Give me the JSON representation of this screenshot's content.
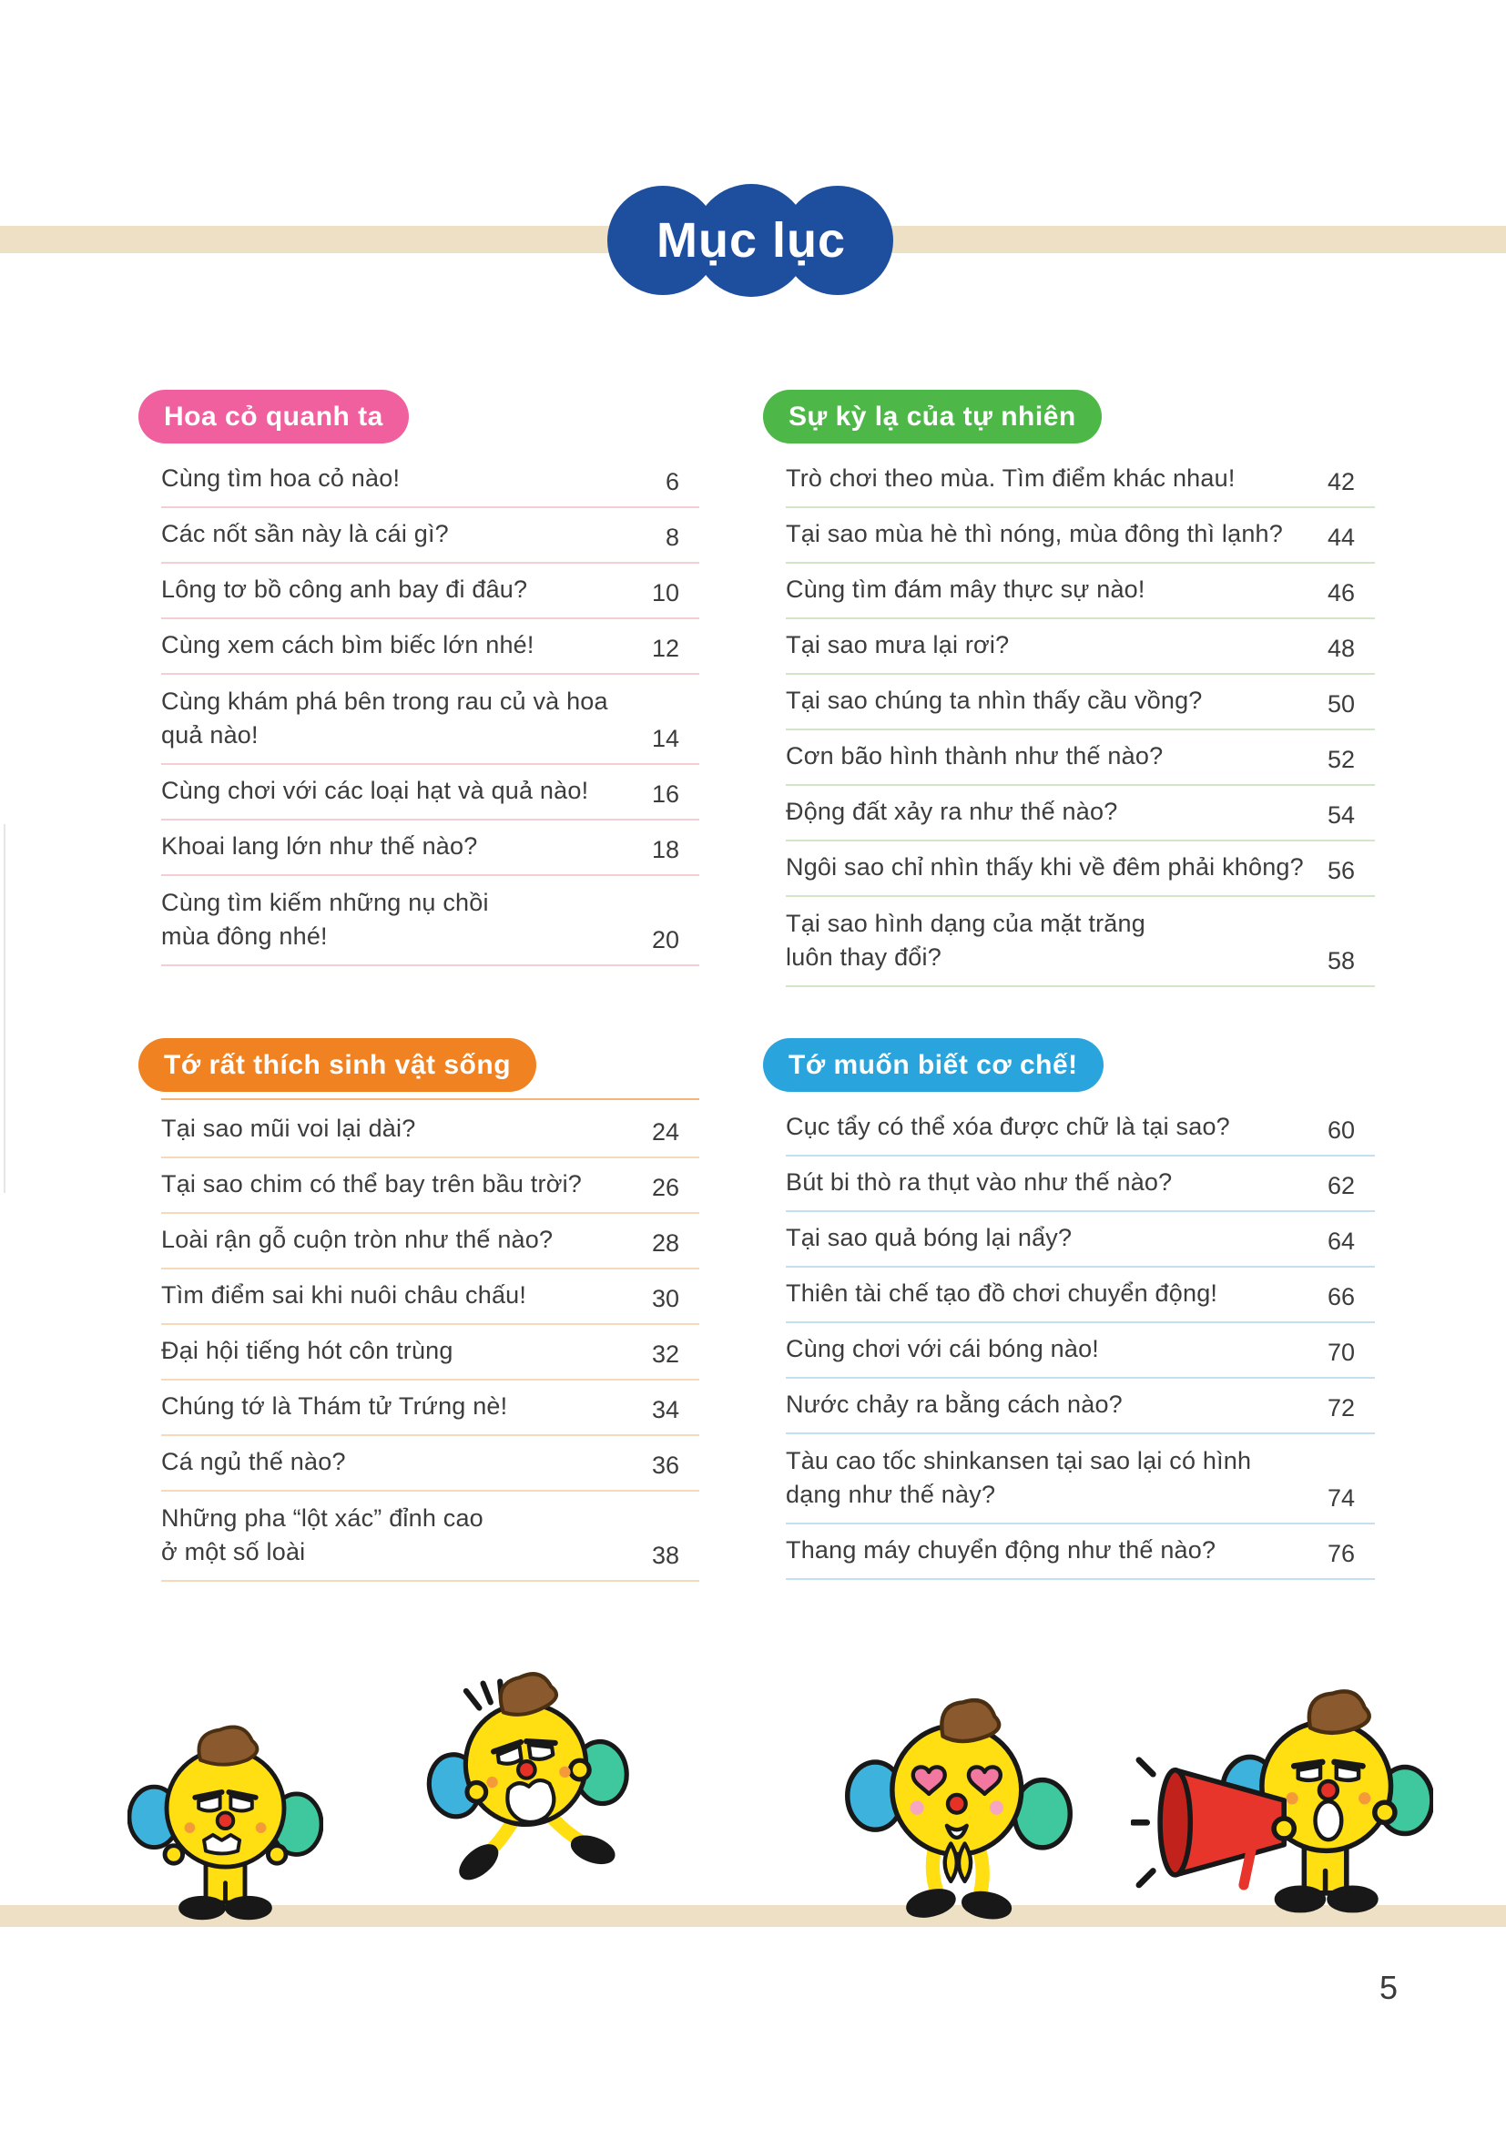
{
  "page": {
    "title": "Mục lục",
    "page_number": "5"
  },
  "colors": {
    "title_blue": "#1d4f9e",
    "band_beige": "#ede0c5",
    "text": "#3c3c3c"
  },
  "sections": [
    {
      "title": "Hoa cỏ quanh ta",
      "accent": "#f0609e",
      "rule_color": "#f5cdd5",
      "entries": [
        {
          "title": "Cùng tìm hoa cỏ nào!",
          "page": "6"
        },
        {
          "title": "Các nốt sần này là cái gì?",
          "page": "8"
        },
        {
          "title": "Lông tơ bồ công anh bay đi đâu?",
          "page": "10"
        },
        {
          "title": "Cùng xem cách bìm biếc lớn nhé!",
          "page": "12"
        },
        {
          "title": "Cùng khám phá bên trong rau củ và hoa\nquả nào!",
          "page": "14"
        },
        {
          "title": "Cùng chơi với các loại hạt và quả nào!",
          "page": "16"
        },
        {
          "title": "Khoai lang lớn như thế nào?",
          "page": "18"
        },
        {
          "title": "Cùng tìm kiếm những nụ chồi\nmùa đông nhé!",
          "page": "20"
        }
      ]
    },
    {
      "title": "Sự kỳ lạ của tự nhiên",
      "accent": "#4db848",
      "rule_color": "#d2e5c6",
      "entries": [
        {
          "title": "Trò chơi theo mùa. Tìm điểm khác nhau!",
          "page": "42"
        },
        {
          "title": "Tại sao mùa hè thì nóng, mùa đông thì lạnh?",
          "page": "44"
        },
        {
          "title": "Cùng tìm đám mây thực sự nào!",
          "page": "46"
        },
        {
          "title": "Tại sao mưa lại rơi?",
          "page": "48"
        },
        {
          "title": "Tại sao chúng ta nhìn thấy cầu vồng?",
          "page": "50"
        },
        {
          "title": "Cơn bão hình thành như thế nào?",
          "page": "52"
        },
        {
          "title": "Động đất xảy ra như thế nào?",
          "page": "54"
        },
        {
          "title": "Ngôi sao chỉ nhìn thấy khi về đêm phải không?",
          "page": "56"
        },
        {
          "title": "Tại sao hình dạng của mặt trăng\nluôn thay đổi?",
          "page": "58"
        }
      ]
    },
    {
      "title": "Tớ rất thích sinh vật sống",
      "accent": "#f08221",
      "rule_color": "#f6d9b9",
      "header_rule_color": "#f3b478",
      "entries": [
        {
          "title": "Tại sao mũi voi lại dài?",
          "page": "24"
        },
        {
          "title": "Tại sao chim có thể bay trên bầu trời?",
          "page": "26"
        },
        {
          "title": "Loài rận gỗ cuộn tròn như thế nào?",
          "page": "28"
        },
        {
          "title": "Tìm điểm sai khi nuôi châu chấu!",
          "page": "30"
        },
        {
          "title": "Đại hội tiếng hót côn trùng",
          "page": "32"
        },
        {
          "title": "Chúng tớ là Thám tử Trứng nè!",
          "page": "34"
        },
        {
          "title": "Cá ngủ thế nào?",
          "page": "36"
        },
        {
          "title": "Những pha “lột xác” đỉnh cao\nở một số loài",
          "page": "38"
        }
      ]
    },
    {
      "title": "Tớ muốn biết cơ chế!",
      "accent": "#29a4dc",
      "rule_color": "#c3dff0",
      "entries": [
        {
          "title": "Cục tẩy có thể xóa được chữ là tại sao?",
          "page": "60"
        },
        {
          "title": "Bút bi thò ra thụt vào như thế nào?",
          "page": "62"
        },
        {
          "title": "Tại sao quả bóng lại nẩy?",
          "page": "64"
        },
        {
          "title": "Thiên tài chế tạo đồ chơi chuyển động!",
          "page": "66"
        },
        {
          "title": "Cùng chơi với cái bóng nào!",
          "page": "70"
        },
        {
          "title": "Nước chảy ra bằng cách nào?",
          "page": "72"
        },
        {
          "title": "Tàu cao tốc shinkansen tại sao lại có hình\ndạng như thế này?",
          "page": "74"
        },
        {
          "title": "Thang máy chuyển động như thế nào?",
          "page": "76"
        }
      ]
    }
  ],
  "mascots": [
    {
      "name": "grumpy"
    },
    {
      "name": "startled"
    },
    {
      "name": "in-love"
    },
    {
      "name": "megaphone"
    }
  ]
}
